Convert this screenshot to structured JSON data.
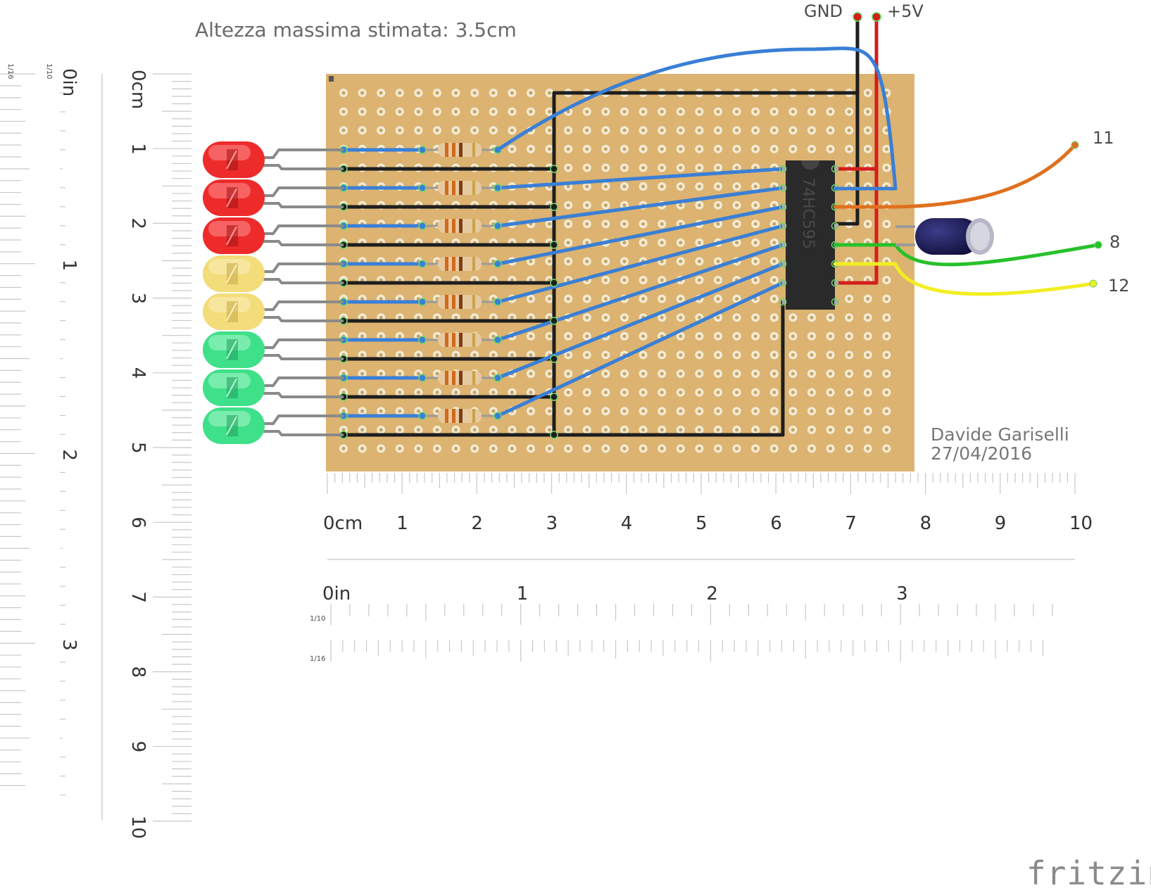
{
  "title": "Altezza massima stimata: 3.5cm",
  "author": {
    "name": "Davide Gariselli",
    "date": "27/04/2016"
  },
  "brand": "fritzing",
  "ic_label": "74HC595",
  "power": {
    "gnd": "GND",
    "vcc": "+5V"
  },
  "pins": {
    "p11": "11",
    "p8": "8",
    "p12": "12"
  },
  "rulers": {
    "h_cm": [
      "0cm",
      "1",
      "2",
      "3",
      "4",
      "5",
      "6",
      "7",
      "8",
      "9",
      "10"
    ],
    "h_in": [
      "0in",
      "1",
      "2",
      "3"
    ],
    "v_cm": [
      "0cm",
      "1",
      "2",
      "3",
      "4",
      "5",
      "6",
      "7",
      "8",
      "9",
      "10"
    ],
    "v_in": [
      "0in",
      "1",
      "2",
      "3"
    ],
    "frac_10": "1/10",
    "frac_16": "1/16"
  },
  "leds": [
    {
      "color": "red"
    },
    {
      "color": "red"
    },
    {
      "color": "red"
    },
    {
      "color": "yellow"
    },
    {
      "color": "yellow"
    },
    {
      "color": "green"
    },
    {
      "color": "green"
    },
    {
      "color": "green"
    }
  ],
  "colors": {
    "board": "#dcb370",
    "wire_blue": "#3a7fd6",
    "wire_black": "#1e1e1e",
    "wire_red": "#d51d1d",
    "wire_orange": "#e0701e",
    "wire_green": "#27c12a",
    "wire_yellow": "#f2ee22",
    "chip": "#2a2a2a",
    "capacitor": "#14144a"
  }
}
